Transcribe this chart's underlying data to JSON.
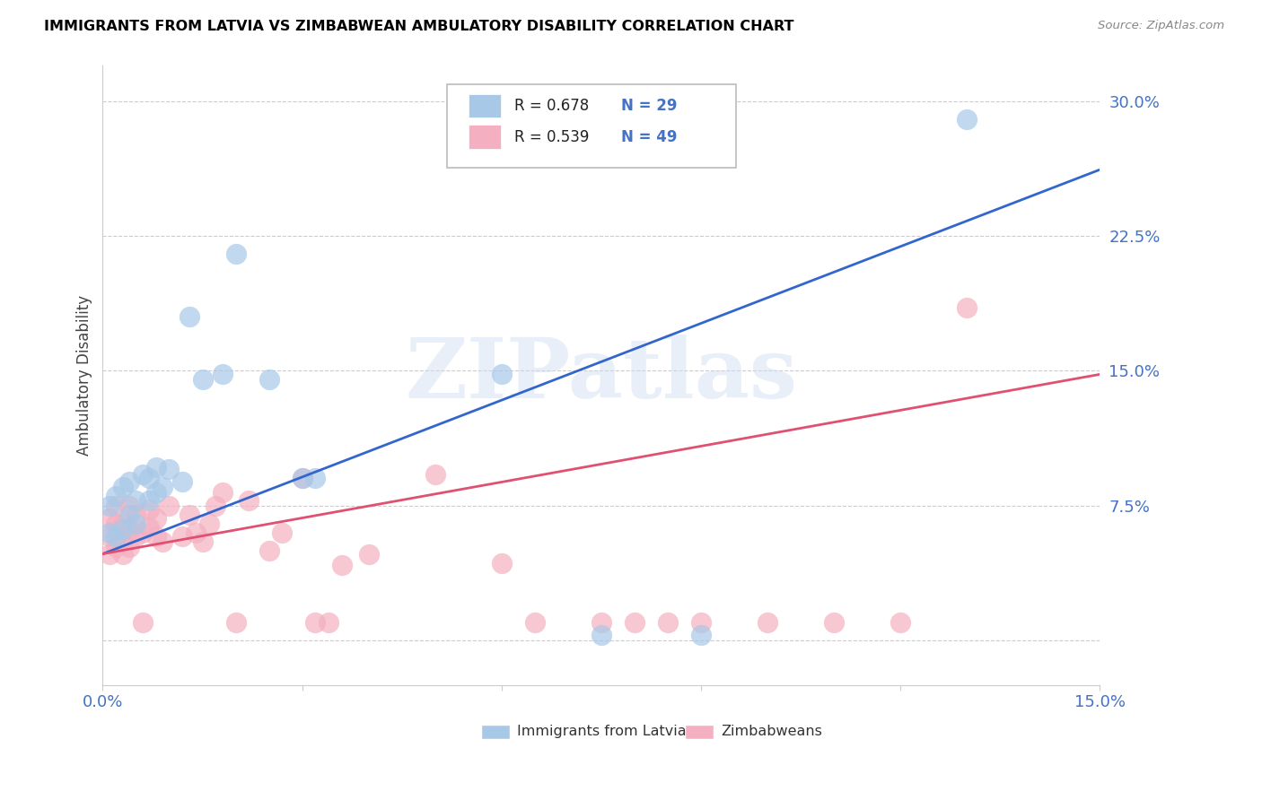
{
  "title": "IMMIGRANTS FROM LATVIA VS ZIMBABWEAN AMBULATORY DISABILITY CORRELATION CHART",
  "source": "Source: ZipAtlas.com",
  "ylabel": "Ambulatory Disability",
  "xlim": [
    0.0,
    0.15
  ],
  "ylim": [
    -0.025,
    0.32
  ],
  "yticks": [
    0.0,
    0.075,
    0.15,
    0.225,
    0.3
  ],
  "ytick_labels": [
    "",
    "7.5%",
    "15.0%",
    "22.5%",
    "30.0%"
  ],
  "xticks": [
    0.0,
    0.03,
    0.06,
    0.09,
    0.12,
    0.15
  ],
  "xtick_labels": [
    "0.0%",
    "",
    "",
    "",
    "",
    "15.0%"
  ],
  "legend_r1": "R = 0.678",
  "legend_n1": "N = 29",
  "legend_r2": "R = 0.539",
  "legend_n2": "N = 49",
  "legend_label1": "Immigrants from Latvia",
  "legend_label2": "Zimbabweans",
  "blue_color": "#a8c8e8",
  "pink_color": "#f4b0c0",
  "blue_line_color": "#3366cc",
  "pink_line_color": "#e05070",
  "axis_label_color": "#4472c4",
  "text_color_black": "#333333",
  "watermark": "ZIPatlas",
  "latvia_x": [
    0.001,
    0.001,
    0.002,
    0.002,
    0.003,
    0.003,
    0.004,
    0.004,
    0.005,
    0.005,
    0.006,
    0.007,
    0.007,
    0.008,
    0.008,
    0.009,
    0.01,
    0.012,
    0.013,
    0.015,
    0.018,
    0.02,
    0.025,
    0.03,
    0.032,
    0.06,
    0.075,
    0.09,
    0.13
  ],
  "latvia_y": [
    0.06,
    0.075,
    0.058,
    0.08,
    0.062,
    0.085,
    0.07,
    0.088,
    0.065,
    0.078,
    0.092,
    0.078,
    0.09,
    0.082,
    0.096,
    0.085,
    0.095,
    0.088,
    0.18,
    0.145,
    0.148,
    0.215,
    0.145,
    0.09,
    0.09,
    0.148,
    0.003,
    0.003,
    0.29
  ],
  "zimbabwe_x": [
    0.001,
    0.001,
    0.001,
    0.002,
    0.002,
    0.002,
    0.003,
    0.003,
    0.003,
    0.004,
    0.004,
    0.004,
    0.005,
    0.005,
    0.006,
    0.006,
    0.007,
    0.007,
    0.008,
    0.008,
    0.009,
    0.01,
    0.012,
    0.013,
    0.014,
    0.015,
    0.016,
    0.017,
    0.018,
    0.02,
    0.022,
    0.025,
    0.027,
    0.03,
    0.032,
    0.034,
    0.036,
    0.04,
    0.05,
    0.06,
    0.065,
    0.075,
    0.08,
    0.085,
    0.09,
    0.1,
    0.11,
    0.12,
    0.13
  ],
  "zimbabwe_y": [
    0.048,
    0.058,
    0.068,
    0.052,
    0.065,
    0.075,
    0.055,
    0.065,
    0.048,
    0.052,
    0.062,
    0.075,
    0.058,
    0.07,
    0.06,
    0.01,
    0.063,
    0.073,
    0.058,
    0.068,
    0.055,
    0.075,
    0.058,
    0.07,
    0.06,
    0.055,
    0.065,
    0.075,
    0.082,
    0.01,
    0.078,
    0.05,
    0.06,
    0.09,
    0.01,
    0.01,
    0.042,
    0.048,
    0.092,
    0.043,
    0.01,
    0.01,
    0.01,
    0.01,
    0.01,
    0.01,
    0.01,
    0.01,
    0.185
  ],
  "blue_line_x": [
    0.0,
    0.15
  ],
  "blue_line_y": [
    0.048,
    0.262
  ],
  "pink_line_x": [
    0.0,
    0.15
  ],
  "pink_line_y": [
    0.048,
    0.148
  ]
}
